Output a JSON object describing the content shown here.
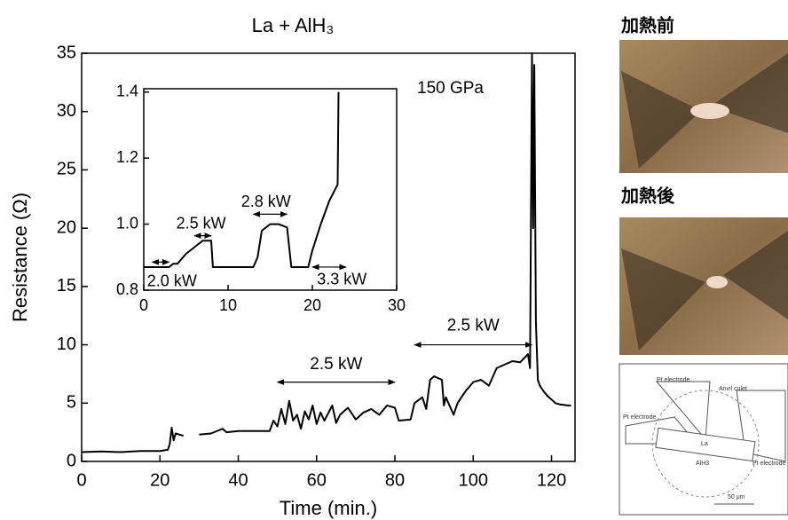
{
  "chart_data": [
    {
      "type": "line",
      "title": "La + AlH₃",
      "x_label": "Time (min.)",
      "y_label": "Resistance (Ω)",
      "x": [
        0,
        5,
        10,
        15,
        20,
        22,
        22.5,
        23,
        23.5,
        24,
        25,
        26,
        28,
        30,
        33,
        36,
        37,
        40,
        45,
        48,
        49,
        50,
        51,
        52,
        53,
        54,
        55,
        56,
        57,
        58,
        59,
        60,
        61,
        62,
        64,
        65,
        66,
        68,
        70,
        72,
        74,
        76,
        78,
        80,
        81,
        84,
        85,
        87,
        88,
        89,
        90,
        92,
        92.5,
        93,
        95,
        96,
        98,
        100,
        102,
        104,
        106,
        108,
        110,
        112,
        114,
        114.5,
        115,
        115.3,
        115.6,
        116,
        116.5,
        117,
        118,
        119,
        120,
        121,
        122,
        124,
        125
      ],
      "series": [
        {
          "color": "#000000",
          "values": [
            0.8,
            0.85,
            0.8,
            0.9,
            0.9,
            1.0,
            1.5,
            2.9,
            1.8,
            2.4,
            2.3,
            2.2,
            null,
            2.3,
            2.4,
            2.8,
            2.5,
            2.6,
            2.6,
            2.6,
            3.5,
            3.0,
            4.5,
            3.2,
            5.2,
            3.5,
            4.0,
            2.8,
            4.3,
            3.6,
            4.8,
            3.2,
            4.2,
            3.5,
            4.8,
            3.3,
            4.0,
            4.6,
            3.6,
            4.2,
            4.5,
            4.0,
            4.8,
            4.6,
            3.5,
            3.6,
            5.0,
            5.5,
            4.5,
            7.0,
            7.3,
            7.0,
            4.8,
            5.5,
            4.0,
            5.0,
            6.0,
            6.8,
            7.0,
            6.5,
            8.0,
            8.3,
            8.6,
            8.5,
            9.2,
            8.0,
            35,
            20,
            34,
            12,
            7,
            6.5,
            6,
            5.6,
            5.3,
            5.0,
            4.9,
            4.8,
            4.8
          ]
        }
      ],
      "xlim": [
        0,
        126
      ],
      "ylim": [
        0,
        35
      ],
      "xticks": [
        0,
        20,
        40,
        60,
        80,
        100,
        120
      ],
      "yticks": [
        0,
        5,
        10,
        15,
        20,
        25,
        30,
        35
      ],
      "annotations": [
        "150 GPa",
        "2.5 kW",
        "2.5 kW"
      ]
    },
    {
      "type": "line",
      "x": [
        0,
        2,
        3,
        3.5,
        4,
        5,
        6,
        7,
        8,
        8.2,
        10,
        13,
        13.5,
        14,
        15,
        16,
        17,
        17.5,
        19.5,
        20,
        21,
        22,
        23,
        23.1
      ],
      "series": [
        {
          "color": "#000000",
          "values": [
            0.87,
            0.87,
            0.87,
            0.88,
            0.88,
            0.91,
            0.93,
            0.95,
            0.95,
            0.87,
            0.87,
            0.87,
            0.9,
            0.98,
            1.0,
            1.0,
            0.99,
            0.87,
            0.87,
            0.92,
            1.0,
            1.07,
            1.12,
            1.4
          ]
        }
      ],
      "xlim": [
        0,
        30
      ],
      "ylim": [
        0.8,
        1.41
      ],
      "xticks": [
        0,
        10,
        20,
        30
      ],
      "yticks": [
        0.8,
        {
          "value": 1.0,
          "label": "1.0"
        },
        1.2,
        1.4
      ],
      "annotations": [
        "2.0 kW",
        "2.5 kW",
        "2.8 kW",
        "3.3 kW"
      ]
    }
  ],
  "side_panel": {
    "before": "加熱前",
    "after": "加熱後",
    "diagram_labels": [
      "Pt electrode",
      "Anvil culet",
      "Pt electrode",
      "La",
      "AlH3",
      "Pt electrode",
      "50 μm"
    ]
  }
}
